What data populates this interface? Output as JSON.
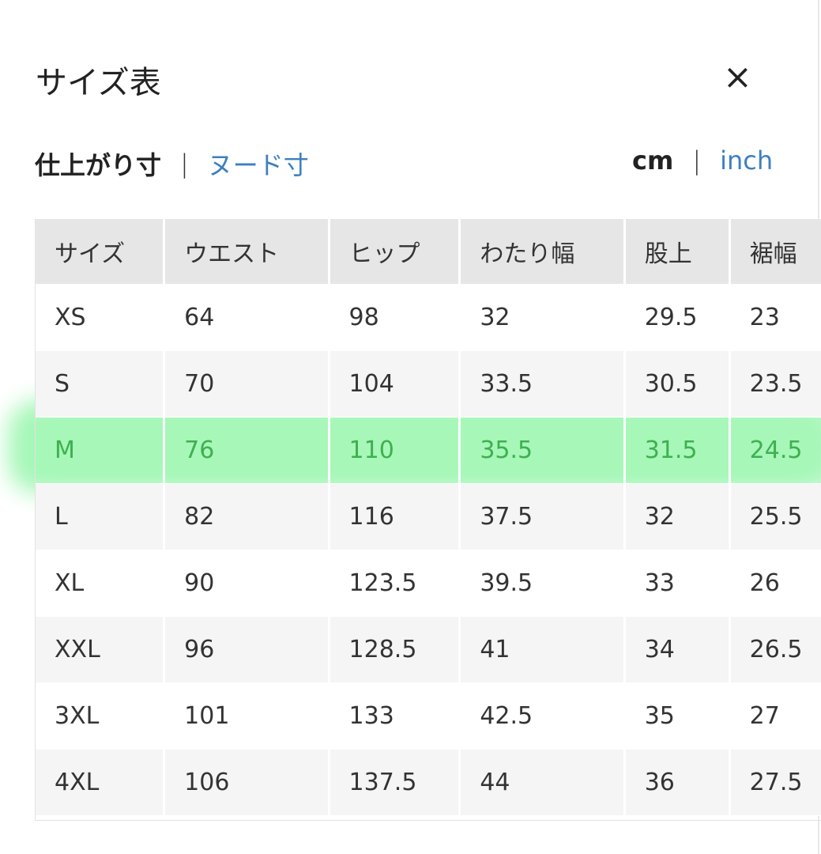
{
  "header": {
    "title": "サイズ表",
    "close_icon": "close-icon",
    "close_glyph": "×"
  },
  "measure_toggle": {
    "active": "仕上がり寸",
    "separator": "|",
    "other": "ヌード寸"
  },
  "unit_toggle": {
    "active": "cm",
    "separator": "|",
    "other": "inch"
  },
  "colors": {
    "link": "#3d7fc0",
    "highlight": "#a6f7b8",
    "highlight_text": "#3fb04f",
    "header_bg": "#e6e6e6"
  },
  "table": {
    "columns": [
      "サイズ",
      "ウエスト",
      "ヒップ",
      "わたり幅",
      "股上",
      "裾幅"
    ],
    "highlighted_row": "M",
    "rows": [
      [
        "XS",
        "64",
        "98",
        "32",
        "29.5",
        "23"
      ],
      [
        "S",
        "70",
        "104",
        "33.5",
        "30.5",
        "23.5"
      ],
      [
        "M",
        "76",
        "110",
        "35.5",
        "31.5",
        "24.5"
      ],
      [
        "L",
        "82",
        "116",
        "37.5",
        "32",
        "25.5"
      ],
      [
        "XL",
        "90",
        "123.5",
        "39.5",
        "33",
        "26"
      ],
      [
        "XXL",
        "96",
        "128.5",
        "41",
        "34",
        "26.5"
      ],
      [
        "3XL",
        "101",
        "133",
        "42.5",
        "35",
        "27"
      ],
      [
        "4XL",
        "106",
        "137.5",
        "44",
        "36",
        "27.5"
      ]
    ]
  }
}
